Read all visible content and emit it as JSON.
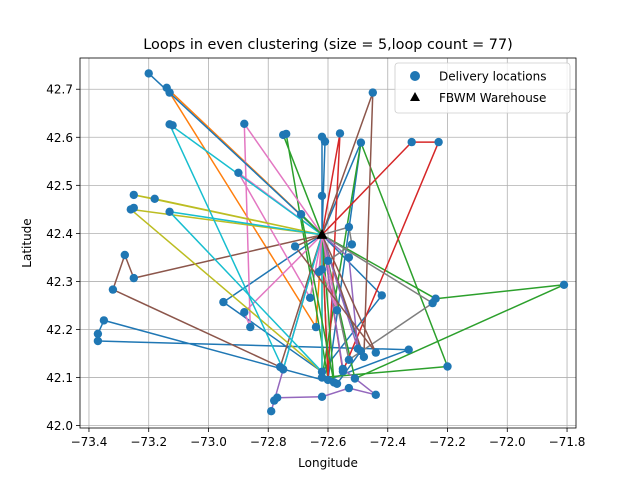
{
  "chart_data": {
    "type": "scatter",
    "title": "Loops in even clustering (size = 5,loop count = 77)",
    "xlabel": "Longitude",
    "ylabel": "Latitude",
    "xlim": [
      -73.43,
      -71.77
    ],
    "ylim": [
      41.995,
      42.765
    ],
    "xticks": [
      -73.4,
      -73.2,
      -73.0,
      -72.8,
      -72.6,
      -72.4,
      -72.2,
      -72.0,
      -71.8
    ],
    "xtick_labels": [
      "−73.4",
      "−73.2",
      "−73.0",
      "−72.8",
      "−72.6",
      "−72.4",
      "−72.2",
      "−72.0",
      "−71.8"
    ],
    "yticks": [
      42.0,
      42.1,
      42.2,
      42.3,
      42.4,
      42.5,
      42.6,
      42.7
    ],
    "ytick_labels": [
      "42.0",
      "42.1",
      "42.2",
      "42.3",
      "42.4",
      "42.5",
      "42.6",
      "42.7"
    ],
    "grid": true,
    "legend_position": "top-right",
    "legend": [
      {
        "label": "Delivery locations",
        "marker": "circle",
        "color": "#1f77b4"
      },
      {
        "label": "FBWM Warehouse",
        "marker": "triangle",
        "color": "#000000"
      }
    ],
    "warehouse": [
      -72.62,
      42.397
    ],
    "delivery_points": [
      [
        -73.2,
        42.733
      ],
      [
        -73.14,
        42.703
      ],
      [
        -73.13,
        42.693
      ],
      [
        -73.13,
        42.627
      ],
      [
        -73.12,
        42.625
      ],
      [
        -72.88,
        42.628
      ],
      [
        -72.75,
        42.605
      ],
      [
        -72.74,
        42.607
      ],
      [
        -72.62,
        42.601
      ],
      [
        -72.61,
        42.591
      ],
      [
        -72.56,
        42.608
      ],
      [
        -72.49,
        42.589
      ],
      [
        -72.45,
        42.693
      ],
      [
        -72.32,
        42.59
      ],
      [
        -72.23,
        42.59
      ],
      [
        -72.9,
        42.526
      ],
      [
        -72.62,
        42.478
      ],
      [
        -73.25,
        42.48
      ],
      [
        -73.25,
        42.453
      ],
      [
        -73.26,
        42.45
      ],
      [
        -73.18,
        42.472
      ],
      [
        -73.13,
        42.445
      ],
      [
        -72.69,
        42.44
      ],
      [
        -72.53,
        42.413
      ],
      [
        -72.52,
        42.377
      ],
      [
        -72.71,
        42.373
      ],
      [
        -72.6,
        42.343
      ],
      [
        -72.53,
        42.35
      ],
      [
        -72.63,
        42.32
      ],
      [
        -72.62,
        42.325
      ],
      [
        -73.28,
        42.355
      ],
      [
        -73.25,
        42.307
      ],
      [
        -73.32,
        42.283
      ],
      [
        -72.66,
        42.266
      ],
      [
        -72.42,
        42.271
      ],
      [
        -72.24,
        42.264
      ],
      [
        -72.25,
        42.255
      ],
      [
        -71.81,
        42.293
      ],
      [
        -72.95,
        42.257
      ],
      [
        -72.88,
        42.236
      ],
      [
        -72.86,
        42.205
      ],
      [
        -72.64,
        42.205
      ],
      [
        -72.57,
        42.24
      ],
      [
        -73.35,
        42.219
      ],
      [
        -73.37,
        42.191
      ],
      [
        -73.37,
        42.176
      ],
      [
        -72.5,
        42.16
      ],
      [
        -72.49,
        42.155
      ],
      [
        -72.44,
        42.152
      ],
      [
        -72.33,
        42.158
      ],
      [
        -72.48,
        42.143
      ],
      [
        -72.53,
        42.137
      ],
      [
        -72.76,
        42.122
      ],
      [
        -72.75,
        42.117
      ],
      [
        -72.62,
        42.112
      ],
      [
        -72.62,
        42.1
      ],
      [
        -72.6,
        42.095
      ],
      [
        -72.58,
        42.09
      ],
      [
        -72.57,
        42.087
      ],
      [
        -72.55,
        42.113
      ],
      [
        -72.55,
        42.118
      ],
      [
        -72.51,
        42.098
      ],
      [
        -72.53,
        42.078
      ],
      [
        -72.44,
        42.064
      ],
      [
        -72.2,
        42.123
      ],
      [
        -72.77,
        42.058
      ],
      [
        -72.78,
        42.052
      ],
      [
        -72.79,
        42.03
      ],
      [
        -72.62,
        42.06
      ]
    ],
    "loops": [
      {
        "color": "#1f77b4",
        "points": [
          [
            -72.62,
            42.397
          ],
          [
            -72.49,
            42.589
          ],
          [
            -72.6,
            42.095
          ],
          [
            -72.33,
            42.158
          ],
          [
            -73.37,
            42.176
          ],
          [
            -73.37,
            42.191
          ],
          [
            -73.35,
            42.219
          ],
          [
            -72.57,
            42.087
          ],
          [
            -72.49,
            42.155
          ],
          [
            -72.62,
            42.397
          ]
        ]
      },
      {
        "color": "#1f77b4",
        "points": [
          [
            -72.62,
            42.397
          ],
          [
            -72.42,
            42.271
          ],
          [
            -72.62,
            42.112
          ],
          [
            -72.95,
            42.257
          ],
          [
            -72.62,
            42.397
          ]
        ]
      },
      {
        "color": "#ff7f0e",
        "points": [
          [
            -72.62,
            42.397
          ],
          [
            -73.14,
            42.703
          ],
          [
            -73.13,
            42.693
          ],
          [
            -72.64,
            42.205
          ],
          [
            -72.62,
            42.397
          ]
        ]
      },
      {
        "color": "#2ca02c",
        "points": [
          [
            -72.62,
            42.397
          ],
          [
            -72.75,
            42.605
          ],
          [
            -72.74,
            42.607
          ],
          [
            -72.6,
            42.098
          ],
          [
            -72.62,
            42.397
          ]
        ]
      },
      {
        "color": "#2ca02c",
        "points": [
          [
            -72.62,
            42.1
          ],
          [
            -72.2,
            42.123
          ],
          [
            -72.49,
            42.589
          ],
          [
            -72.62,
            42.1
          ]
        ]
      },
      {
        "color": "#2ca02c",
        "points": [
          [
            -72.62,
            42.397
          ],
          [
            -72.24,
            42.264
          ],
          [
            -71.81,
            42.293
          ],
          [
            -72.51,
            42.098
          ],
          [
            -72.62,
            42.397
          ]
        ]
      },
      {
        "color": "#d62728",
        "points": [
          [
            -72.62,
            42.397
          ],
          [
            -72.32,
            42.59
          ],
          [
            -72.23,
            42.59
          ],
          [
            -72.55,
            42.113
          ],
          [
            -72.62,
            42.397
          ]
        ]
      },
      {
        "color": "#d62728",
        "points": [
          [
            -72.62,
            42.397
          ],
          [
            -72.56,
            42.608
          ],
          [
            -72.6,
            42.1
          ],
          [
            -72.62,
            42.397
          ]
        ]
      },
      {
        "color": "#9467bd",
        "points": [
          [
            -72.62,
            42.397
          ],
          [
            -72.79,
            42.03
          ],
          [
            -72.78,
            42.052
          ],
          [
            -72.77,
            42.058
          ],
          [
            -72.62,
            42.06
          ],
          [
            -72.53,
            42.078
          ],
          [
            -72.44,
            42.064
          ],
          [
            -72.55,
            42.118
          ],
          [
            -72.62,
            42.397
          ]
        ]
      },
      {
        "color": "#8c564b",
        "points": [
          [
            -72.62,
            42.397
          ],
          [
            -73.25,
            42.307
          ],
          [
            -73.28,
            42.355
          ],
          [
            -73.32,
            42.283
          ],
          [
            -72.76,
            42.122
          ],
          [
            -72.62,
            42.397
          ]
        ]
      },
      {
        "color": "#8c564b",
        "points": [
          [
            -72.62,
            42.397
          ],
          [
            -72.45,
            42.693
          ],
          [
            -72.48,
            42.143
          ],
          [
            -72.62,
            42.397
          ]
        ]
      },
      {
        "color": "#e377c2",
        "points": [
          [
            -72.62,
            42.397
          ],
          [
            -72.88,
            42.628
          ],
          [
            -72.86,
            42.205
          ],
          [
            -72.88,
            42.236
          ],
          [
            -72.62,
            42.397
          ]
        ]
      },
      {
        "color": "#e377c2",
        "points": [
          [
            -72.62,
            42.397
          ],
          [
            -72.9,
            42.526
          ],
          [
            -72.66,
            42.266
          ],
          [
            -72.62,
            42.397
          ]
        ]
      },
      {
        "color": "#7f7f7f",
        "points": [
          [
            -72.62,
            42.397
          ],
          [
            -72.25,
            42.255
          ],
          [
            -72.53,
            42.137
          ],
          [
            -72.62,
            42.397
          ]
        ]
      },
      {
        "color": "#bcbd22",
        "points": [
          [
            -72.62,
            42.397
          ],
          [
            -73.25,
            42.48
          ],
          [
            -73.18,
            42.472
          ],
          [
            -72.62,
            42.397
          ]
        ]
      },
      {
        "color": "#bcbd22",
        "points": [
          [
            -72.62,
            42.397
          ],
          [
            -73.26,
            42.45
          ],
          [
            -72.62,
            42.112
          ],
          [
            -72.62,
            42.397
          ]
        ]
      },
      {
        "color": "#17becf",
        "points": [
          [
            -72.62,
            42.397
          ],
          [
            -73.13,
            42.627
          ],
          [
            -72.75,
            42.117
          ],
          [
            -72.62,
            42.397
          ]
        ]
      },
      {
        "color": "#17becf",
        "points": [
          [
            -72.62,
            42.397
          ],
          [
            -73.13,
            42.445
          ],
          [
            -72.62,
            42.112
          ],
          [
            -72.62,
            42.397
          ]
        ]
      },
      {
        "color": "#1f77b4",
        "points": [
          [
            -72.62,
            42.397
          ],
          [
            -73.2,
            42.733
          ],
          [
            -72.62,
            42.397
          ]
        ]
      },
      {
        "color": "#2ca02c",
        "points": [
          [
            -72.62,
            42.397
          ],
          [
            -72.69,
            42.44
          ],
          [
            -72.58,
            42.09
          ],
          [
            -72.62,
            42.397
          ]
        ]
      },
      {
        "color": "#9467bd",
        "points": [
          [
            -72.62,
            42.397
          ],
          [
            -72.53,
            42.35
          ],
          [
            -72.5,
            42.16
          ],
          [
            -72.62,
            42.397
          ]
        ]
      },
      {
        "color": "#7f7f7f",
        "points": [
          [
            -72.62,
            42.397
          ],
          [
            -72.53,
            42.413
          ],
          [
            -72.52,
            42.377
          ],
          [
            -72.6,
            42.343
          ],
          [
            -72.62,
            42.397
          ]
        ]
      },
      {
        "color": "#1f77b4",
        "points": [
          [
            -72.62,
            42.397
          ],
          [
            -72.61,
            42.591
          ],
          [
            -72.62,
            42.601
          ],
          [
            -72.62,
            42.478
          ],
          [
            -72.62,
            42.397
          ]
        ]
      },
      {
        "color": "#e377c2",
        "points": [
          [
            -72.62,
            42.397
          ],
          [
            -72.63,
            42.32
          ],
          [
            -72.62,
            42.325
          ],
          [
            -72.57,
            42.24
          ],
          [
            -72.62,
            42.397
          ]
        ]
      },
      {
        "color": "#8c564b",
        "points": [
          [
            -72.62,
            42.397
          ],
          [
            -72.71,
            42.373
          ],
          [
            -72.44,
            42.152
          ],
          [
            -72.62,
            42.397
          ]
        ]
      }
    ]
  }
}
